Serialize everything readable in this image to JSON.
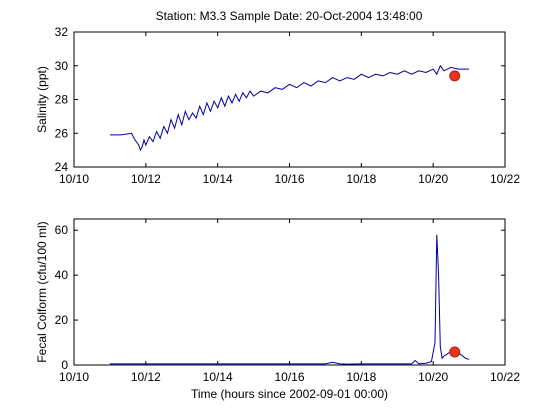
{
  "title": "Station: M3.3  Sample Date: 20-Oct-2004 13:48:00",
  "colors": {
    "line": "#0000a0",
    "marker": "#e8341c",
    "marker_edge": "#b02010",
    "axes": "#000000"
  },
  "chart_data": [
    {
      "type": "line",
      "title": "Station: M3.3  Sample Date: 20-Oct-2004 13:48:00",
      "xlabel": "",
      "ylabel": "Salinity (ppt)",
      "xlim": [
        10.0,
        22.0
      ],
      "ylim": [
        24,
        32
      ],
      "xticks": [
        10,
        12,
        14,
        16,
        18,
        20,
        22
      ],
      "xticklabels": [
        "10/10",
        "10/12",
        "10/14",
        "10/16",
        "10/18",
        "10/20",
        "10/22"
      ],
      "yticks": [
        24,
        26,
        28,
        30,
        32
      ],
      "yticklabels": [
        "24",
        "26",
        "28",
        "30",
        "32"
      ],
      "grid": false,
      "series": [
        {
          "x": [
            11.0,
            11.3,
            11.6,
            11.7,
            11.8,
            11.85,
            11.9,
            11.95,
            12.0,
            12.1,
            12.2,
            12.3,
            12.4,
            12.5,
            12.6,
            12.7,
            12.8,
            12.9,
            13.0,
            13.1,
            13.2,
            13.3,
            13.4,
            13.5,
            13.6,
            13.7,
            13.8,
            13.9,
            14.0,
            14.1,
            14.2,
            14.3,
            14.4,
            14.5,
            14.6,
            14.7,
            14.8,
            14.9,
            15.0,
            15.2,
            15.4,
            15.6,
            15.8,
            16.0,
            16.2,
            16.4,
            16.6,
            16.8,
            17.0,
            17.2,
            17.4,
            17.6,
            17.8,
            18.0,
            18.2,
            18.4,
            18.6,
            18.8,
            19.0,
            19.2,
            19.4,
            19.6,
            19.8,
            20.0,
            20.1,
            20.2,
            20.3,
            20.5,
            20.7,
            21.0
          ],
          "y": [
            25.9,
            25.9,
            26.0,
            25.6,
            25.3,
            25.0,
            25.2,
            25.6,
            25.3,
            25.8,
            25.5,
            26.1,
            25.7,
            26.4,
            26.0,
            26.8,
            26.3,
            27.1,
            26.5,
            27.3,
            26.8,
            27.2,
            26.9,
            27.6,
            27.1,
            27.8,
            27.3,
            27.9,
            27.5,
            28.1,
            27.6,
            28.2,
            27.8,
            28.3,
            27.9,
            28.4,
            28.1,
            28.5,
            28.2,
            28.5,
            28.4,
            28.7,
            28.6,
            28.9,
            28.7,
            29.0,
            28.8,
            29.1,
            29.0,
            29.3,
            29.1,
            29.3,
            29.2,
            29.5,
            29.3,
            29.5,
            29.4,
            29.6,
            29.5,
            29.7,
            29.5,
            29.7,
            29.6,
            29.8,
            29.5,
            30.0,
            29.7,
            29.9,
            29.8,
            29.8
          ]
        }
      ],
      "sample": {
        "x": 20.6,
        "y": 29.4
      }
    },
    {
      "type": "line",
      "title": "",
      "xlabel": "Time (hours since 2002-09-01 00:00)",
      "ylabel": "Fecal Colform (cfu/100 ml)",
      "xlim": [
        10.0,
        22.0
      ],
      "ylim": [
        0,
        65
      ],
      "xticks": [
        10,
        12,
        14,
        16,
        18,
        20,
        22
      ],
      "xticklabels": [
        "10/10",
        "10/12",
        "10/14",
        "10/16",
        "10/18",
        "10/20",
        "10/22"
      ],
      "yticks": [
        0,
        20,
        40,
        60
      ],
      "yticklabels": [
        "0",
        "20",
        "40",
        "60"
      ],
      "grid": false,
      "series": [
        {
          "x": [
            11.0,
            14.0,
            17.0,
            17.2,
            17.4,
            17.6,
            18.0,
            19.4,
            19.5,
            19.6,
            19.8,
            19.95,
            20.05,
            20.1,
            20.15,
            20.2,
            20.25,
            20.3,
            20.4,
            20.5,
            20.7,
            20.9,
            21.0
          ],
          "y": [
            0.5,
            0.5,
            0.5,
            1.2,
            0.5,
            0.4,
            0.5,
            0.5,
            2.0,
            0.6,
            0.8,
            1.5,
            10.0,
            58.0,
            40.0,
            8.0,
            3.0,
            4.0,
            5.0,
            6.0,
            5.5,
            3.0,
            2.5
          ]
        }
      ],
      "sample": {
        "x": 20.6,
        "y": 5.8
      }
    }
  ]
}
